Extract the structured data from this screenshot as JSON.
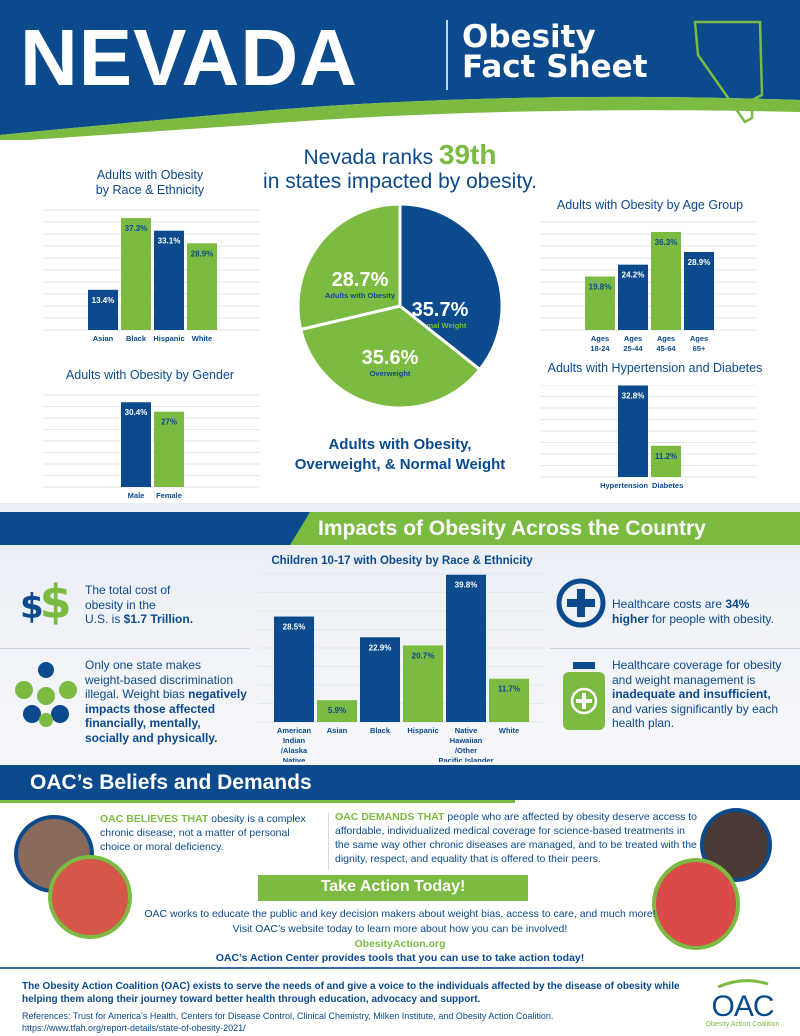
{
  "header": {
    "state": "NEVADA",
    "title_line1": "Obesity",
    "title_line2": "Fact Sheet"
  },
  "headline": {
    "prefix": "Nevada ranks ",
    "rank": "39th",
    "suffix": "in states impacted by obesity."
  },
  "colors": {
    "blue": "#0b4a8c",
    "green": "#7cbb42"
  },
  "chart_data": [
    {
      "id": "race",
      "type": "bar",
      "title": "Adults with Obesity by Race & Ethnicity",
      "title_line1": "Adults with Obesity",
      "title_line2": "by Race & Ethnicity",
      "categories": [
        "Asian",
        "Black",
        "Hispanic",
        "White"
      ],
      "values": [
        13.4,
        37.3,
        33.1,
        28.9
      ],
      "labels": [
        "13.4%",
        "37.3%",
        "33.1%",
        "28.9%"
      ],
      "colors": [
        "#0b4a8c",
        "#7cbb42",
        "#0b4a8c",
        "#7cbb42"
      ],
      "ylim": [
        0,
        40
      ],
      "grid": true
    },
    {
      "id": "gender",
      "type": "bar",
      "title": "Adults with Obesity by Gender",
      "categories": [
        "Male",
        "Female"
      ],
      "values": [
        30.4,
        27
      ],
      "labels": [
        "30.4%",
        "27%"
      ],
      "colors": [
        "#0b4a8c",
        "#7cbb42"
      ],
      "ylim": [
        0,
        33
      ],
      "grid": true
    },
    {
      "id": "age",
      "type": "bar",
      "title": "Adults with Obesity by Age Group",
      "categories": [
        "Ages 18-24",
        "Ages 25-44",
        "Ages 45-64",
        "Ages 65+"
      ],
      "values": [
        19.8,
        24.2,
        36.3,
        28.9
      ],
      "labels": [
        "19.8%",
        "24.2%",
        "36.3%",
        "28.9%"
      ],
      "colors": [
        "#7cbb42",
        "#0b4a8c",
        "#7cbb42",
        "#0b4a8c"
      ],
      "ylim": [
        0,
        40
      ],
      "grid": true
    },
    {
      "id": "htn",
      "type": "bar",
      "title": "Adults with Hypertension and Diabetes",
      "categories": [
        "Hypertension",
        "Diabetes"
      ],
      "values": [
        32.8,
        11.2
      ],
      "labels": [
        "32.8%",
        "11.2%"
      ],
      "colors": [
        "#0b4a8c",
        "#7cbb42"
      ],
      "ylim": [
        0,
        33
      ],
      "grid": true
    },
    {
      "id": "pie",
      "type": "pie",
      "title": "Adults with Obesity, Overweight, & Normal Weight",
      "title_line1": "Adults with Obesity,",
      "title_line2": "Overweight, & Normal Weight",
      "slices": [
        {
          "name": "Normal Weight",
          "value": 35.7,
          "label": "35.7%",
          "color": "#0b4a8c"
        },
        {
          "name": "Overweight",
          "value": 35.6,
          "label": "35.6%",
          "color": "#7cbb42"
        },
        {
          "name": "Adults with Obesity",
          "value": 28.7,
          "label": "28.7%",
          "color": "#7cbb42"
        }
      ]
    },
    {
      "id": "children",
      "type": "bar",
      "title": "Children 10-17 with Obesity by Race & Ethnicity",
      "categories": [
        "American Indian /Alaska Native",
        "Asian",
        "Black",
        "Hispanic",
        "Native Hawaiian /Other Pacific Islander",
        "White"
      ],
      "values": [
        28.5,
        5.9,
        22.9,
        20.7,
        39.8,
        11.7
      ],
      "labels": [
        "28.5%",
        "5.9%",
        "22.9%",
        "20.7%",
        "39.8%",
        "11.7%"
      ],
      "colors": [
        "#0b4a8c",
        "#7cbb42",
        "#0b4a8c",
        "#7cbb42",
        "#0b4a8c",
        "#7cbb42"
      ],
      "ylim": [
        0,
        40
      ],
      "grid": true
    }
  ],
  "impacts": {
    "title": "Impacts of Obesity Across the Country",
    "cost": {
      "icon": "dollar-icon",
      "glyph": "$$",
      "line1": "The total cost of",
      "line2": "obesity in the",
      "line3": "U.S. is ",
      "value": "$1.7 Trillion."
    },
    "bias": {
      "icon": "puzzle-icon",
      "line1": "Only one state makes",
      "line2": "weight-based discrimination",
      "line3": "illegal. Weight bias ",
      "bold1": "negatively",
      "bold2": "impacts those affected",
      "bold3": "financially, mentally,",
      "bold4": "socially and physically."
    },
    "healthcare_cost": {
      "icon": "plus-circle-icon",
      "line1a": "Healthcare costs are ",
      "bold1": "34%",
      "bold2": "higher",
      "line2": " for people with obesity."
    },
    "coverage": {
      "icon": "medicine-bottle-icon",
      "line1": "Healthcare coverage for obesity",
      "line2": "and weight management is",
      "bold": "inadequate and insufficient,",
      "line3": "and varies significantly by each",
      "line4": "health plan."
    }
  },
  "beliefs": {
    "title": "OAC’s Beliefs and Demands",
    "believes_lead": "OAC BELIEVES THAT",
    "believes_text": " obesity is a complex chronic disease, not a matter of personal choice or moral deficiency.",
    "demands_lead": "OAC DEMANDS THAT",
    "demands_text": " people who are affected by obesity deserve access to affordable, individualized medical coverage for science-based treatments in the same way other chronic diseases are managed, and to be treated with the dignity, respect, and equality that is offered to their peers."
  },
  "action": {
    "title": "Take Action Today!",
    "line1": "OAC works to educate the public and key decision makers about weight bias, access to care, and much more!",
    "line2": "Visit OAC’s website today to learn more about how you can be involved!",
    "link": "ObesityAction.org",
    "line3": "OAC’s Action Center provides tools that you can use to take action today!"
  },
  "footer": {
    "mission": "The Obesity Action Coalition (OAC) exists to serve the needs of and give a voice to the individuals affected by the disease of obesity while helping them along their journey toward better health through education, advocacy and support.",
    "references": "References: Trust for America’s Health, Centers for Disease Control, Clinical Chemistry, Milken Institute, and Obesity Action Coalition.",
    "url": "https://www.tfah.org/report-details/state-of-obesity-2021/",
    "logo_text": "OAC",
    "logo_sub": "Obesity Action Coalition"
  }
}
